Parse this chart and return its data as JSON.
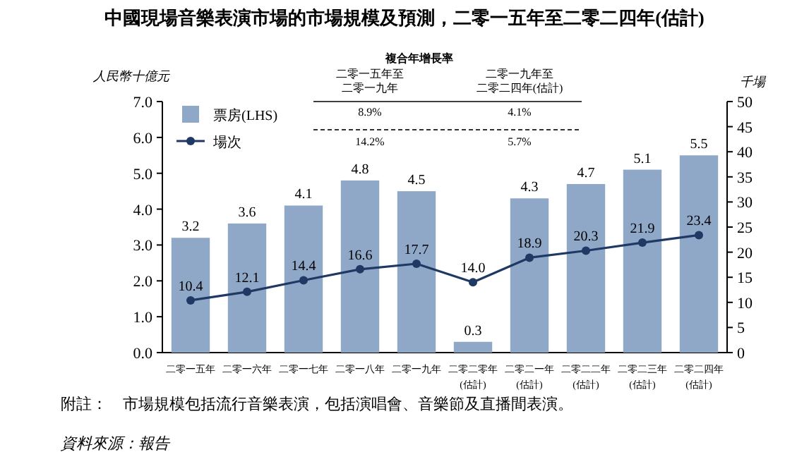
{
  "chart_data": {
    "type": "bar",
    "title": "中國現場音樂表演市場的市場規模及預測，二零一五年至二零二四年(估計)",
    "ylabel": "人民幣十億元",
    "y2label": "千場",
    "categories": [
      "二零一五年",
      "二零一六年",
      "二零一七年",
      "二零一八年",
      "二零一九年",
      "二零二零年\n(估計)",
      "二零二一年\n(估計)",
      "二零二二年\n(估計)",
      "二零二三年\n(估計)",
      "二零二四年\n(估計)"
    ],
    "series": [
      {
        "name": "票房(LHS)",
        "color": "#8fa8c8",
        "values": [
          3.2,
          3.6,
          4.1,
          4.8,
          4.5,
          0.3,
          4.3,
          4.7,
          5.1,
          5.5
        ]
      },
      {
        "name": "場次",
        "type": "line",
        "axis": "y2",
        "color": "#1f3864",
        "values": [
          10.4,
          12.1,
          14.4,
          16.6,
          17.7,
          14.0,
          18.9,
          20.3,
          21.9,
          23.4
        ],
        "value_labels": [
          "10.4",
          "12.1",
          "14.4",
          "16.6",
          "17.7",
          "14.0",
          "18.9",
          "20.3",
          "21.9",
          "23.4"
        ]
      }
    ],
    "ylim": [
      0,
      7
    ],
    "yticks": [
      {
        "value": 0,
        "label": "0.0"
      },
      {
        "value": 1,
        "label": "1.0"
      },
      {
        "value": 2,
        "label": "2.0"
      },
      {
        "value": 3,
        "label": "3.0"
      },
      {
        "value": 4,
        "label": "4.0"
      },
      {
        "value": 5,
        "label": "5.0"
      },
      {
        "value": 6,
        "label": "6.0"
      },
      {
        "value": 7,
        "label": "7.0"
      }
    ],
    "y2lim": [
      0,
      50
    ],
    "y2ticks": [
      0,
      5,
      10,
      15,
      20,
      25,
      30,
      35,
      40,
      45,
      50
    ],
    "marker": "circle",
    "data_labels": true,
    "legend": "top left",
    "grid": false,
    "annotations": [
      "複合年增長率",
      "二零一五年至",
      "二零一九年至",
      "二零一九年",
      "二零二四年(估計)",
      "8.9%",
      "4.1%",
      "14.2%",
      "5.7%",
      "附註：　市場規模包括流行音樂表演，包括演唱會、音樂節及直播間表演。",
      "資料來源：報告"
    ]
  }
}
